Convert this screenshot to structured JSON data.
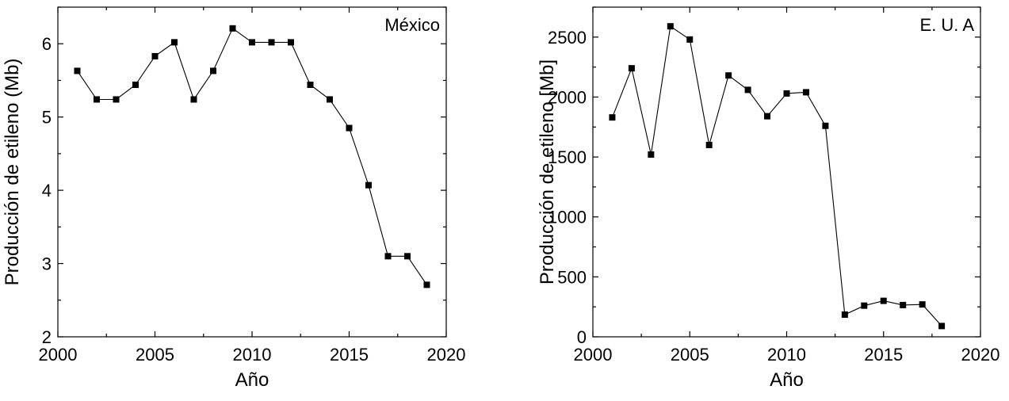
{
  "chart_data": [
    {
      "type": "line",
      "panel_label": "México",
      "xlabel": "Año",
      "ylabel": "Producción de etileno (Mb)",
      "xlim": [
        2000,
        2020
      ],
      "ylim": [
        2,
        6.5
      ],
      "x_ticks": [
        2000,
        2005,
        2010,
        2015,
        2020
      ],
      "x_tick_labels": [
        "2000",
        "2005",
        "2010",
        "2015",
        "2020"
      ],
      "y_ticks": [
        2,
        3,
        4,
        5,
        6
      ],
      "y_tick_labels": [
        "2",
        "3",
        "4",
        "5",
        "6"
      ],
      "series": [
        {
          "x": [
            2001,
            2002,
            2003,
            2004,
            2005,
            2006,
            2007,
            2008,
            2009,
            2010,
            2011,
            2012,
            2013,
            2014,
            2015,
            2016,
            2017,
            2018,
            2019
          ],
          "y": [
            5.63,
            5.24,
            5.24,
            5.44,
            5.83,
            6.02,
            5.24,
            5.63,
            6.21,
            6.02,
            6.02,
            6.02,
            5.44,
            5.24,
            4.85,
            4.07,
            3.1,
            3.1,
            2.71
          ]
        }
      ],
      "marker": "square",
      "color": "#000000"
    },
    {
      "type": "line",
      "panel_label": "E. U. A",
      "xlabel": "Año",
      "ylabel": "Producción de etileno [Mb]",
      "xlim": [
        2000,
        2020
      ],
      "ylim": [
        0,
        2750
      ],
      "x_ticks": [
        2000,
        2005,
        2010,
        2015,
        2020
      ],
      "x_tick_labels": [
        "2000",
        "2005",
        "2010",
        "2015",
        "2020"
      ],
      "y_ticks": [
        0,
        500,
        1000,
        1500,
        2000,
        2500
      ],
      "y_tick_labels": [
        "0",
        "500",
        "1000",
        "1500",
        "2000",
        "2500"
      ],
      "series": [
        {
          "x": [
            2001,
            2002,
            2003,
            2004,
            2005,
            2006,
            2007,
            2008,
            2009,
            2010,
            2011,
            2012,
            2013,
            2014,
            2015,
            2016,
            2017,
            2018
          ],
          "y": [
            1830,
            2240,
            1520,
            2590,
            2480,
            1600,
            2180,
            2060,
            1840,
            2030,
            2040,
            1760,
            185,
            260,
            300,
            265,
            270,
            90
          ]
        }
      ],
      "marker": "square",
      "color": "#000000"
    }
  ]
}
